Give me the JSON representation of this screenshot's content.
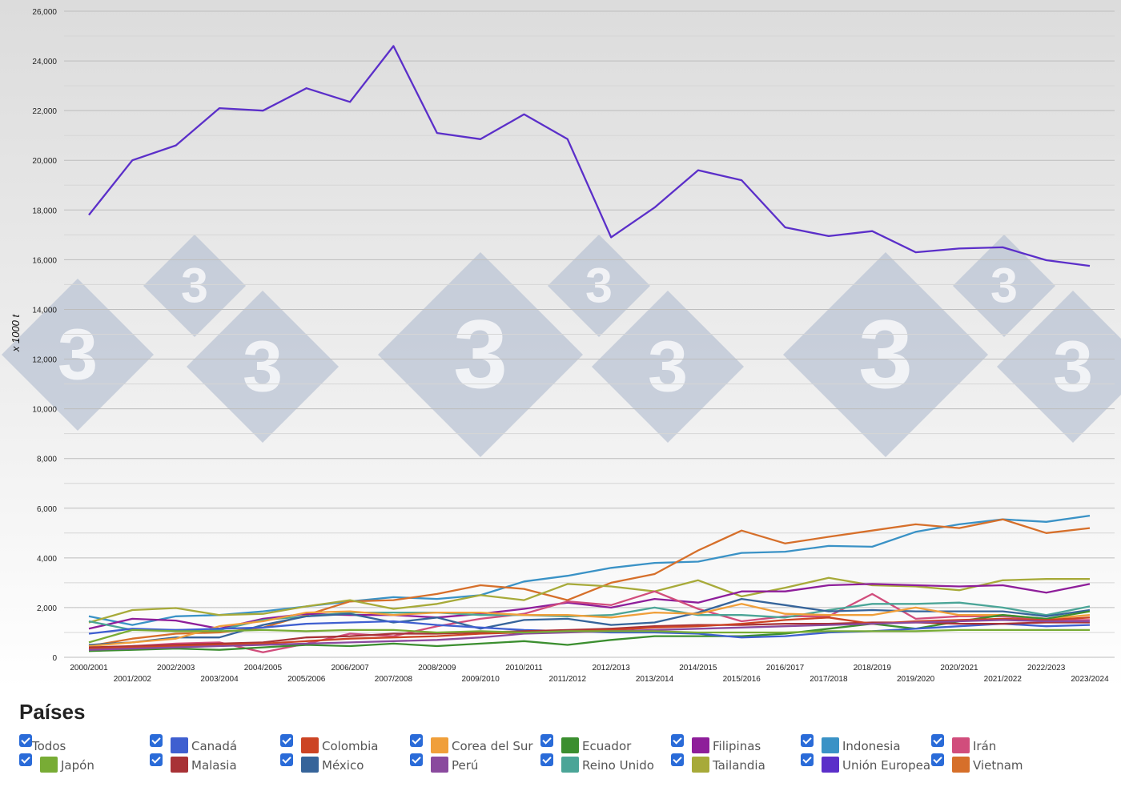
{
  "chart_data": {
    "type": "line",
    "ylabel": "x 1000 t",
    "ylim": [
      0,
      26000
    ],
    "yticks": [
      "0",
      "2,000",
      "4,000",
      "6,000",
      "8,000",
      "10,000",
      "12,000",
      "14,000",
      "16,000",
      "18,000",
      "20,000",
      "22,000",
      "24,000",
      "26,000"
    ],
    "categories": [
      "2000/2001",
      "2001/2002",
      "2002/2003",
      "2003/2004",
      "2004/2005",
      "2005/2006",
      "2006/2007",
      "2007/2008",
      "2008/2009",
      "2009/2010",
      "2010/2011",
      "2011/2012",
      "2012/2013",
      "2013/2014",
      "2014/2015",
      "2015/2016",
      "2016/2017",
      "2017/2018",
      "2018/2019",
      "2019/2020",
      "2020/2021",
      "2021/2022",
      "2022/2023",
      "2023/2024"
    ],
    "grid": true,
    "legend_position": "bottom",
    "series": [
      {
        "name": "Unión Europea",
        "color": "#5b2fc9",
        "values": [
          17800,
          20000,
          20600,
          22100,
          22000,
          22900,
          22350,
          24600,
          21100,
          20850,
          21850,
          20850,
          16900,
          18100,
          19600,
          19200,
          17300,
          16950,
          17150,
          16300,
          16450,
          16500,
          15980,
          15750
        ]
      },
      {
        "name": "Indonesia",
        "color": "#3a92c6",
        "values": [
          1650,
          1300,
          1650,
          1700,
          1850,
          2050,
          2250,
          2420,
          2350,
          2500,
          3050,
          3280,
          3600,
          3800,
          3850,
          4200,
          4250,
          4480,
          4450,
          5050,
          5350,
          5550,
          5450,
          5700
        ]
      },
      {
        "name": "Vietnam",
        "color": "#d66f2a",
        "values": [
          450,
          750,
          950,
          1000,
          1200,
          1700,
          2250,
          2300,
          2550,
          2900,
          2750,
          2300,
          3000,
          3350,
          4300,
          5100,
          4580,
          4850,
          5100,
          5350,
          5200,
          5550,
          5000,
          5200
        ]
      },
      {
        "name": "Tailandia",
        "color": "#a7aa39",
        "values": [
          1400,
          1900,
          1980,
          1700,
          1750,
          2050,
          2300,
          1950,
          2150,
          2500,
          2300,
          2950,
          2850,
          2650,
          3100,
          2450,
          2800,
          3200,
          2900,
          2850,
          2700,
          3100,
          3150,
          3150
        ]
      },
      {
        "name": "Filipinas",
        "color": "#8e1e9a",
        "values": [
          1150,
          1550,
          1480,
          1150,
          1550,
          1750,
          1700,
          1700,
          1600,
          1750,
          1950,
          2200,
          2000,
          2350,
          2200,
          2650,
          2650,
          2900,
          2950,
          2900,
          2850,
          2900,
          2600,
          2950
        ]
      },
      {
        "name": "Irán",
        "color": "#d14d7c",
        "values": [
          300,
          450,
          550,
          600,
          200,
          550,
          950,
          850,
          1250,
          1550,
          1750,
          2250,
          2100,
          2650,
          1950,
          1450,
          1650,
          1650,
          2550,
          1550,
          1650,
          1650,
          1500,
          1500
        ]
      },
      {
        "name": "Reino Unido",
        "color": "#4ba597",
        "values": [
          1450,
          1100,
          1100,
          1100,
          1500,
          1650,
          1800,
          1800,
          1800,
          1700,
          1700,
          1650,
          1700,
          2000,
          1700,
          1700,
          1600,
          1900,
          2150,
          2150,
          2200,
          2000,
          1700,
          2050
        ]
      },
      {
        "name": "México",
        "color": "#36649a",
        "values": [
          500,
          600,
          800,
          800,
          1300,
          1650,
          1750,
          1400,
          1600,
          1150,
          1500,
          1550,
          1300,
          1400,
          1800,
          2350,
          2100,
          1850,
          1900,
          1850,
          1850,
          1850,
          1650,
          1900
        ]
      },
      {
        "name": "Corea del Sur",
        "color": "#f09f3a",
        "values": [
          450,
          600,
          750,
          1250,
          1450,
          1800,
          1850,
          1700,
          1800,
          1800,
          1700,
          1700,
          1600,
          1800,
          1750,
          2150,
          1750,
          1700,
          1700,
          2000,
          1700,
          1700,
          1550,
          1700
        ]
      },
      {
        "name": "Ecuador",
        "color": "#3b8e2f",
        "values": [
          250,
          300,
          350,
          300,
          400,
          500,
          450,
          550,
          450,
          550,
          650,
          500,
          700,
          850,
          850,
          850,
          950,
          1150,
          1350,
          1150,
          1450,
          1700,
          1550,
          1850
        ]
      },
      {
        "name": "Canadá",
        "color": "#3f5fd0",
        "values": [
          950,
          1150,
          1100,
          1150,
          1200,
          1350,
          1400,
          1450,
          1300,
          1200,
          1100,
          1050,
          1000,
          1000,
          950,
          800,
          850,
          1000,
          1050,
          1150,
          1250,
          1350,
          1250,
          1300
        ]
      },
      {
        "name": "Malasia",
        "color": "#a83236",
        "values": [
          400,
          450,
          500,
          550,
          600,
          800,
          850,
          950,
          950,
          1000,
          1050,
          1100,
          1150,
          1250,
          1300,
          1300,
          1350,
          1350,
          1400,
          1400,
          1350,
          1350,
          1400,
          1400
        ]
      },
      {
        "name": "Colombia",
        "color": "#cc4424",
        "values": [
          350,
          400,
          450,
          500,
          550,
          650,
          750,
          800,
          850,
          950,
          1000,
          1050,
          1100,
          1200,
          1250,
          1350,
          1500,
          1600,
          1350,
          1450,
          1500,
          1550,
          1500,
          1600
        ]
      },
      {
        "name": "Perú",
        "color": "#8a4a9e",
        "values": [
          300,
          350,
          400,
          450,
          500,
          550,
          600,
          650,
          700,
          800,
          950,
          1000,
          1050,
          1100,
          1150,
          1200,
          1250,
          1300,
          1350,
          1400,
          1450,
          1500,
          1450,
          1450
        ]
      },
      {
        "name": "Japón",
        "color": "#78ac35",
        "values": [
          600,
          1100,
          1050,
          1050,
          1100,
          1050,
          1100,
          1100,
          1000,
          1050,
          1000,
          1050,
          1050,
          1050,
          1000,
          1000,
          1000,
          1050,
          1050,
          1050,
          1100,
          1100,
          1100,
          1100
        ]
      }
    ]
  },
  "legend": {
    "title": "Países",
    "items": [
      {
        "label": "Todos",
        "color": ""
      },
      {
        "label": "Canadá",
        "color": "#3f5fd0"
      },
      {
        "label": "Colombia",
        "color": "#cc4424"
      },
      {
        "label": "Corea del Sur",
        "color": "#f09f3a"
      },
      {
        "label": "Ecuador",
        "color": "#3b8e2f"
      },
      {
        "label": "Filipinas",
        "color": "#8e1e9a"
      },
      {
        "label": "Indonesia",
        "color": "#3a92c6"
      },
      {
        "label": "Irán",
        "color": "#d14d7c"
      },
      {
        "label": "Japón",
        "color": "#78ac35"
      },
      {
        "label": "Malasia",
        "color": "#a83236"
      },
      {
        "label": "México",
        "color": "#36649a"
      },
      {
        "label": "Perú",
        "color": "#8a4a9e"
      },
      {
        "label": "Reino Unido",
        "color": "#4ba597"
      },
      {
        "label": "Tailandia",
        "color": "#a7aa39"
      },
      {
        "label": "Unión Europea",
        "color": "#5b2fc9"
      },
      {
        "label": "Vietnam",
        "color": "#d66f2a"
      }
    ]
  },
  "watermark": {
    "text": "3"
  }
}
